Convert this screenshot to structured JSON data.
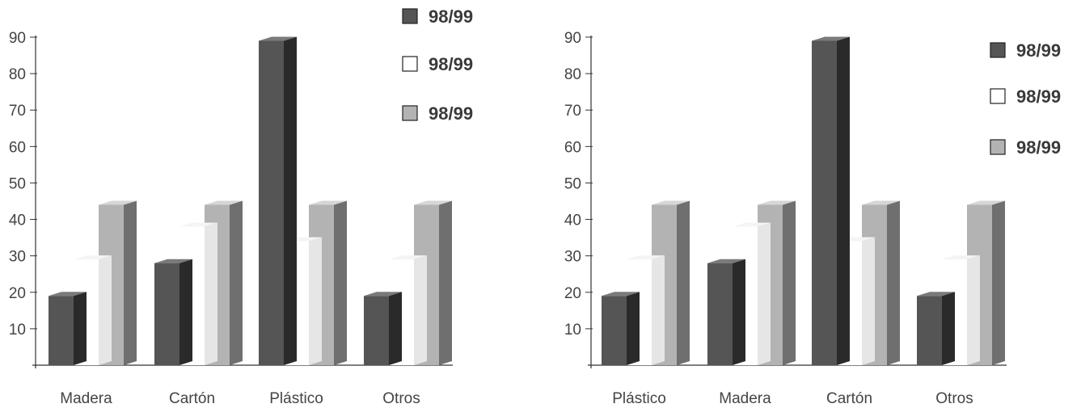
{
  "colors": {
    "dark": "#555555",
    "dark_side": "#2a2a2a",
    "dark_top": "#7a7a7a",
    "white": "#ffffff",
    "white_side": "#e6e6e6",
    "white_top": "#f4f4f4",
    "grey": "#b3b3b3",
    "grey_side": "#6f6f6f",
    "grey_top": "#d6d6d6",
    "axis": "#333333",
    "text": "#444444",
    "legend_text": "#3a3a3a"
  },
  "chart_data": [
    {
      "type": "bar",
      "title": "",
      "xlabel": "",
      "ylabel": "",
      "ylim": [
        0,
        90
      ],
      "yticks": [
        "10",
        "20",
        "30",
        "40",
        "50",
        "60",
        "70",
        "80",
        "90"
      ],
      "categories": [
        "Madera",
        "Cartón",
        "Plástico",
        "Otros"
      ],
      "series": [
        {
          "name": "98/99",
          "color": "dark",
          "values": [
            19,
            28,
            89,
            19
          ]
        },
        {
          "name": "98/99",
          "color": "white",
          "values": [
            29,
            38,
            34,
            29
          ]
        },
        {
          "name": "98/99",
          "color": "grey",
          "values": [
            44,
            44,
            44,
            44
          ]
        }
      ],
      "grid": false,
      "legend": "top-right"
    },
    {
      "type": "bar",
      "title": "",
      "xlabel": "",
      "ylabel": "",
      "ylim": [
        0,
        90
      ],
      "yticks": [
        "10",
        "20",
        "30",
        "40",
        "50",
        "60",
        "70",
        "80",
        "90"
      ],
      "categories": [
        "Plástico",
        "Madera",
        "Cartón",
        "Otros"
      ],
      "series": [
        {
          "name": "98/99",
          "color": "dark",
          "values": [
            19,
            28,
            89,
            19
          ]
        },
        {
          "name": "98/99",
          "color": "white",
          "values": [
            29,
            38,
            34,
            29
          ]
        },
        {
          "name": "98/99",
          "color": "grey",
          "values": [
            44,
            44,
            44,
            44
          ]
        }
      ],
      "grid": false,
      "legend": "top-right"
    }
  ]
}
